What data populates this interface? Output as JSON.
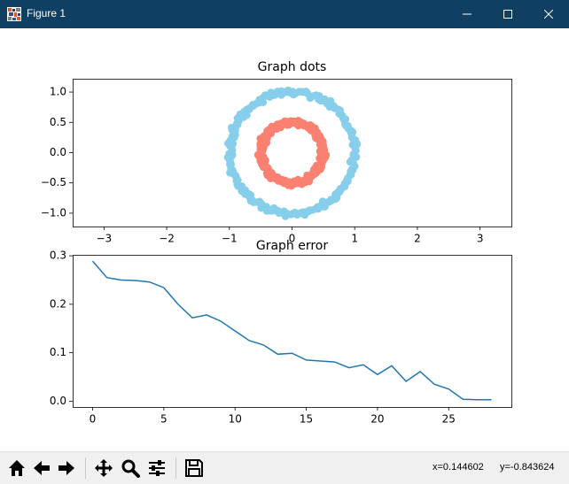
{
  "window": {
    "title": "Figure 1",
    "colors": {
      "titlebar": "#0f3f62",
      "titlebar_text": "#ffffff"
    },
    "controls": [
      "minimize-icon",
      "maximize-icon",
      "close-icon"
    ]
  },
  "chart_data": [
    {
      "type": "scatter",
      "title": "Graph dots",
      "xlabel": "",
      "ylabel": "",
      "xlim": [
        -3.5,
        3.5
      ],
      "ylim": [
        -1.22,
        1.22
      ],
      "xticks": [
        "−3",
        "−2",
        "−1",
        "0",
        "1",
        "2",
        "3"
      ],
      "yticks": [
        "1.0",
        "0.5",
        "0.0",
        "−0.5",
        "−1.0"
      ],
      "grid": false,
      "series": [
        {
          "color": "#87ceeb",
          "shape": "ring",
          "radius": 1.0,
          "noise": 0.06,
          "count": 200
        },
        {
          "color": "#fa8072",
          "shape": "ring",
          "radius": 0.5,
          "noise": 0.06,
          "count": 200
        }
      ]
    },
    {
      "type": "line",
      "title": "Graph error",
      "xlabel": "",
      "ylabel": "",
      "xlim": [
        -1.4,
        29.4
      ],
      "ylim": [
        -0.012,
        0.302
      ],
      "xticks": [
        "0",
        "5",
        "10",
        "15",
        "20",
        "25"
      ],
      "yticks": [
        "0.3",
        "0.2",
        "0.1",
        "0.0"
      ],
      "grid": false,
      "series": [
        {
          "color": "#1f77b4",
          "x": [
            0,
            1,
            2,
            3,
            4,
            5,
            6,
            7,
            8,
            9,
            10,
            11,
            12,
            13,
            14,
            15,
            16,
            17,
            18,
            19,
            20,
            21,
            22,
            23,
            24,
            25,
            26,
            27,
            28
          ],
          "y": [
            0.289,
            0.255,
            0.25,
            0.249,
            0.246,
            0.234,
            0.2,
            0.172,
            0.178,
            0.165,
            0.145,
            0.125,
            0.116,
            0.097,
            0.099,
            0.085,
            0.083,
            0.081,
            0.069,
            0.075,
            0.055,
            0.073,
            0.041,
            0.061,
            0.035,
            0.025,
            0.004,
            0.003,
            0.003
          ]
        }
      ]
    }
  ],
  "toolbar": {
    "buttons": [
      "home-icon",
      "back-icon",
      "forward-icon",
      "pan-icon",
      "zoom-icon",
      "configure-subplots-icon",
      "save-icon"
    ],
    "x_readout": "x=0.144602",
    "y_readout": "y=-0.843624"
  }
}
